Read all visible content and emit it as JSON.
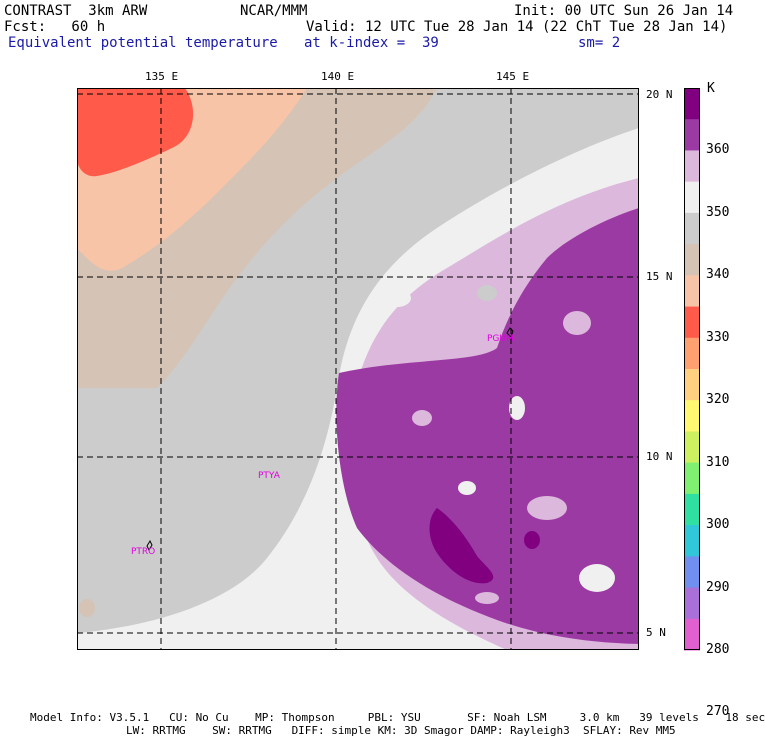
{
  "header": {
    "line1_left": "CONTRAST  3km ARW",
    "line1_center": "NCAR/MMM",
    "line1_right": "Init: 00 UTC Sun 26 Jan 14",
    "line2_left": "Fcst:   60 h",
    "line2_right": "Valid: 12 UTC Tue 28 Jan 14 (22 ChT Tue 28 Jan 14)",
    "line3_left": "Equivalent potential temperature",
    "line3_center": "at k-index =  39",
    "line3_right": "sm= 2"
  },
  "map": {
    "lon_ticks": [
      "135 E",
      "140 E",
      "145 E"
    ],
    "lat_ticks": [
      "20 N",
      "15 N",
      "10 N",
      "5 N"
    ],
    "stations": [
      "PGUM",
      "PTYA",
      "PTRO"
    ]
  },
  "colorbar": {
    "unit": "K",
    "labels": [
      "360",
      "350",
      "340",
      "330",
      "320",
      "310",
      "300",
      "290",
      "280",
      "270"
    ],
    "colors": [
      "#800080",
      "#9c3aa3",
      "#dcb8dc",
      "#f0f0f0",
      "#cccccc",
      "#d5c3b5",
      "#f7c4a8",
      "#ff5a4a",
      "#ffa070",
      "#ffd080",
      "#fff870",
      "#ccf060",
      "#80f070",
      "#30e0a0",
      "#30c8d8",
      "#7090f0",
      "#a870d8",
      "#e060d0"
    ]
  },
  "footer": {
    "line1": "Model Info: V3.5.1   CU: No Cu    MP: Thompson     PBL: YSU       SF: Noah LSM     3.0 km   39 levels    18 sec",
    "line2": "LW: RRTMG    SW: RRTMG   DIFF: simple KM: 3D Smagor DAMP: Rayleigh3  SFLAY: Rev MM5"
  }
}
